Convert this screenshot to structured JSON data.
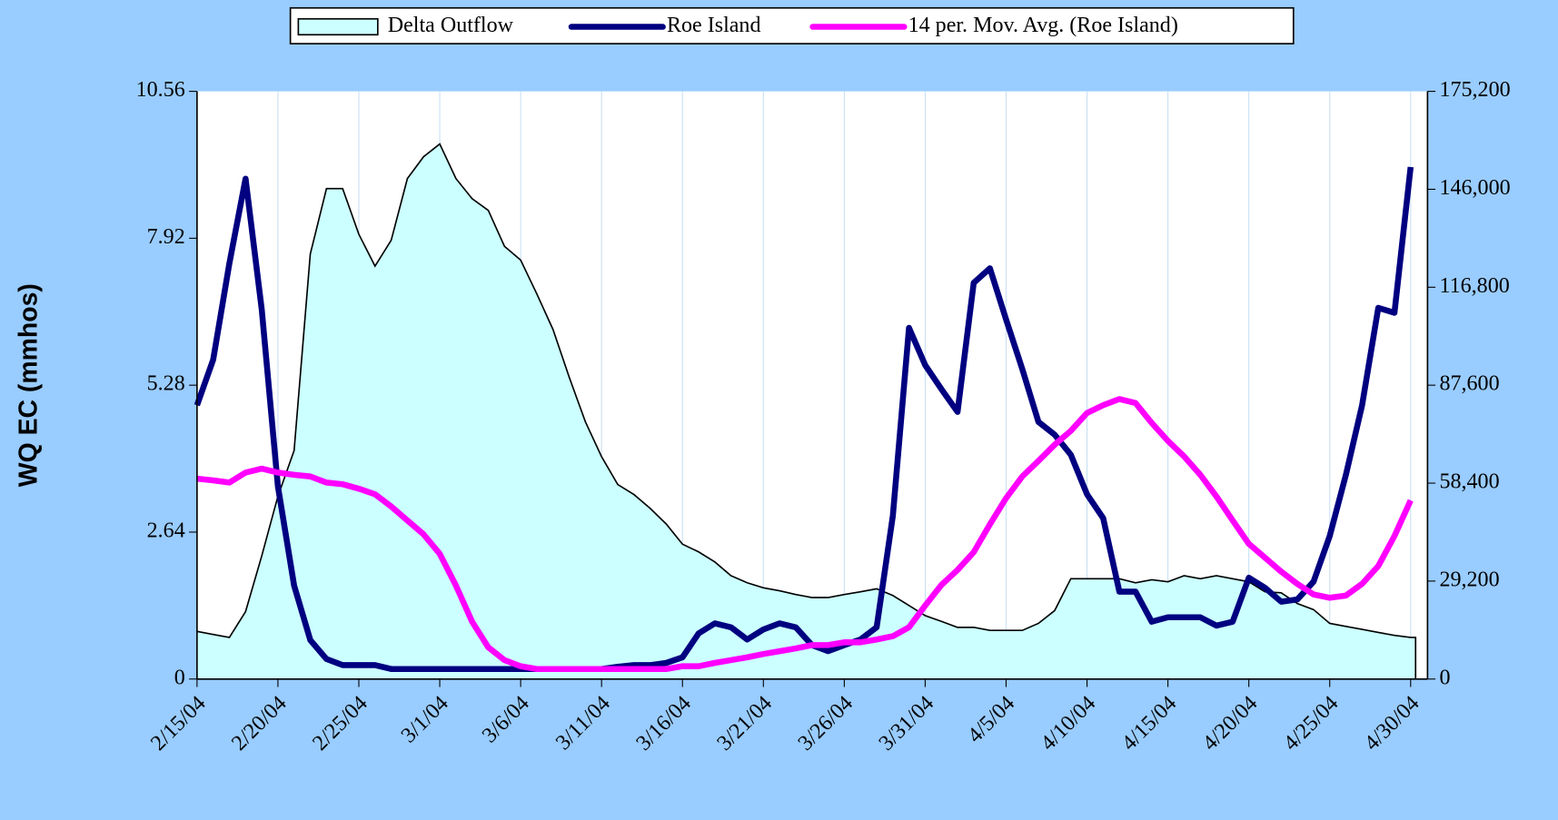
{
  "chart_data": {
    "type": "line",
    "categories": [
      "2/15/04",
      null,
      null,
      null,
      null,
      "2/20/04",
      null,
      null,
      null,
      null,
      "2/25/04",
      null,
      null,
      null,
      null,
      "3/1/04",
      null,
      null,
      null,
      null,
      "3/6/04",
      null,
      null,
      null,
      null,
      "3/11/04",
      null,
      null,
      null,
      null,
      "3/16/04",
      null,
      null,
      null,
      null,
      "3/21/04",
      null,
      null,
      null,
      null,
      "3/26/04",
      null,
      null,
      null,
      null,
      "3/31/04",
      null,
      null,
      null,
      null,
      "4/5/04",
      null,
      null,
      null,
      null,
      "4/10/04",
      null,
      null,
      null,
      null,
      "4/15/04",
      null,
      null,
      null,
      null,
      "4/20/04",
      null,
      null,
      null,
      null,
      "4/25/04",
      null,
      null,
      null,
      null,
      "4/30/04"
    ],
    "y_label": "WQ EC (mmhos)",
    "ylim": [
      0,
      10.56
    ],
    "yticks": [
      0,
      2.64,
      5.28,
      7.92,
      10.56
    ],
    "y2lim": [
      0,
      175200
    ],
    "y2ticks": [
      0,
      {
        "value": 29200,
        "label": "29,200"
      },
      {
        "value": 58400,
        "label": "58,400"
      },
      {
        "value": 87600,
        "label": "87,600"
      },
      {
        "value": 116800,
        "label": "116,800"
      },
      {
        "value": 146000,
        "label": "146,000"
      },
      {
        "value": 175200,
        "label": "175,200"
      }
    ],
    "grid": "vertical",
    "legend": "top",
    "series": [
      {
        "name": "Delta Outflow",
        "type": "area",
        "axis": "y2",
        "color": "#ccffff",
        "values": [
          14200,
          13300,
          12400,
          20100,
          36700,
          54500,
          68100,
          126700,
          146200,
          146200,
          132600,
          123100,
          130800,
          149200,
          155700,
          159500,
          149200,
          143200,
          139700,
          129000,
          124900,
          114800,
          104200,
          90000,
          76700,
          66300,
          58000,
          55000,
          50900,
          46200,
          40200,
          37900,
          34900,
          30800,
          28700,
          27200,
          26300,
          25200,
          24300,
          24300,
          25200,
          26000,
          26900,
          24900,
          21900,
          18900,
          17200,
          15400,
          15400,
          14500,
          14500,
          14500,
          16600,
          20400,
          29900,
          29900,
          29900,
          29900,
          28700,
          29600,
          29000,
          30800,
          29900,
          30800,
          29900,
          29000,
          26000,
          25700,
          22500,
          20700,
          16600,
          15700,
          14800,
          13900,
          13000,
          12400
        ]
      },
      {
        "name": "Roe Island",
        "color": "#000080",
        "values": [
          4.92,
          5.74,
          7.47,
          8.99,
          6.64,
          3.46,
          1.68,
          0.7,
          0.36,
          0.25,
          0.25,
          0.25,
          0.18,
          0.18,
          0.18,
          0.18,
          0.18,
          0.18,
          0.18,
          0.18,
          0.18,
          0.18,
          0.18,
          0.18,
          0.18,
          0.18,
          0.22,
          0.25,
          0.25,
          0.29,
          0.39,
          0.82,
          1.0,
          0.93,
          0.71,
          0.89,
          1.0,
          0.93,
          0.61,
          0.5,
          0.61,
          0.71,
          0.93,
          2.93,
          6.31,
          5.64,
          5.21,
          4.8,
          7.12,
          7.38,
          6.46,
          5.57,
          4.62,
          4.39,
          4.03,
          3.32,
          2.89,
          1.57,
          1.57,
          1.03,
          1.11,
          1.11,
          1.11,
          0.96,
          1.03,
          1.82,
          1.64,
          1.39,
          1.43,
          1.75,
          2.57,
          3.67,
          4.92,
          6.67,
          6.58,
          9.2
        ]
      },
      {
        "name": "14 per. Mov. Avg. (Roe Island)",
        "color": "#ff00ff",
        "values": [
          3.6,
          3.57,
          3.53,
          3.71,
          3.78,
          3.71,
          3.67,
          3.64,
          3.53,
          3.5,
          3.42,
          3.32,
          3.1,
          2.85,
          2.6,
          2.25,
          1.68,
          1.03,
          0.57,
          0.34,
          0.23,
          0.18,
          0.18,
          0.18,
          0.18,
          0.18,
          0.18,
          0.18,
          0.18,
          0.18,
          0.23,
          0.23,
          0.29,
          0.34,
          0.39,
          0.45,
          0.5,
          0.55,
          0.61,
          0.61,
          0.66,
          0.66,
          0.71,
          0.77,
          0.93,
          1.32,
          1.69,
          1.96,
          2.28,
          2.78,
          3.25,
          3.64,
          3.92,
          4.21,
          4.46,
          4.78,
          4.92,
          5.03,
          4.96,
          4.6,
          4.28,
          4.0,
          3.67,
          3.28,
          2.85,
          2.43,
          2.18,
          1.93,
          1.71,
          1.52,
          1.46,
          1.5,
          1.71,
          2.03,
          2.57,
          3.21
        ]
      }
    ]
  }
}
